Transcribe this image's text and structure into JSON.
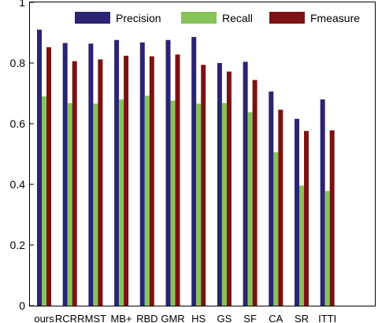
{
  "chart_data": {
    "type": "bar",
    "title": "",
    "xlabel": "",
    "ylabel": "",
    "ylim": [
      0,
      1
    ],
    "yticks": [
      0,
      0.2,
      0.4,
      0.6,
      0.8,
      1
    ],
    "ytick_labels": [
      "0",
      "0.2",
      "0.4",
      "0.6",
      "0.8",
      "1"
    ],
    "grid": false,
    "legend_position": "top",
    "categories": [
      "ours",
      "RCRR",
      "MST",
      "MB+",
      "RBD",
      "GMR",
      "HS",
      "GS",
      "SF",
      "CA",
      "SR",
      "ITTI"
    ],
    "series": [
      {
        "name": "Precision",
        "color": "#2a2473",
        "values": [
          0.91,
          0.866,
          0.864,
          0.876,
          0.868,
          0.876,
          0.886,
          0.8,
          0.804,
          0.706,
          0.616,
          0.68
        ]
      },
      {
        "name": "Recall",
        "color": "#86c45a",
        "values": [
          0.69,
          0.668,
          0.666,
          0.68,
          0.692,
          0.676,
          0.666,
          0.668,
          0.638,
          0.506,
          0.396,
          0.378
        ]
      },
      {
        "name": "Fmeasure",
        "color": "#7c1212",
        "values": [
          0.852,
          0.806,
          0.812,
          0.824,
          0.822,
          0.828,
          0.794,
          0.772,
          0.744,
          0.646,
          0.576,
          0.578
        ]
      }
    ]
  }
}
